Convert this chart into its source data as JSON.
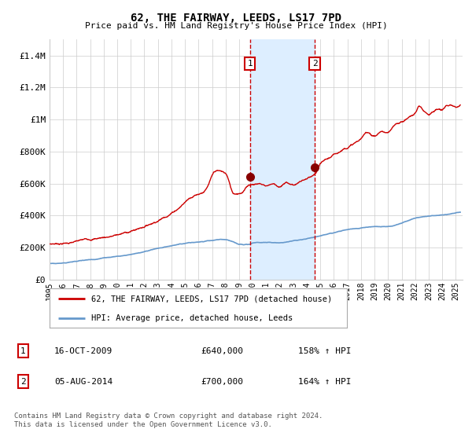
{
  "title": "62, THE FAIRWAY, LEEDS, LS17 7PD",
  "subtitle": "Price paid vs. HM Land Registry's House Price Index (HPI)",
  "ylim": [
    0,
    1500000
  ],
  "yticks": [
    0,
    200000,
    400000,
    600000,
    800000,
    1000000,
    1200000,
    1400000
  ],
  "ytick_labels": [
    "£0",
    "£200K",
    "£400K",
    "£600K",
    "£800K",
    "£1M",
    "£1.2M",
    "£1.4M"
  ],
  "transaction1": {
    "date_num": 2009.79,
    "price": 640000,
    "label": "16-OCT-2009",
    "hpi_pct": "158%"
  },
  "transaction2": {
    "date_num": 2014.58,
    "price": 700000,
    "label": "05-AUG-2014",
    "hpi_pct": "164%"
  },
  "red_line_color": "#cc0000",
  "blue_line_color": "#6699cc",
  "marker_color": "#880000",
  "vline_color": "#cc0000",
  "band_color": "#ddeeff",
  "grid_color": "#cccccc",
  "background_color": "#ffffff",
  "legend1": "62, THE FAIRWAY, LEEDS, LS17 7PD (detached house)",
  "legend2": "HPI: Average price, detached house, Leeds",
  "footnote": "Contains HM Land Registry data © Crown copyright and database right 2024.\nThis data is licensed under the Open Government Licence v3.0.",
  "xmin": 1995.0,
  "xmax": 2025.5,
  "xticks": [
    1995,
    1996,
    1997,
    1998,
    1999,
    2000,
    2001,
    2002,
    2003,
    2004,
    2005,
    2006,
    2007,
    2008,
    2009,
    2010,
    2011,
    2012,
    2013,
    2014,
    2015,
    2016,
    2017,
    2018,
    2019,
    2020,
    2021,
    2022,
    2023,
    2024,
    2025
  ]
}
